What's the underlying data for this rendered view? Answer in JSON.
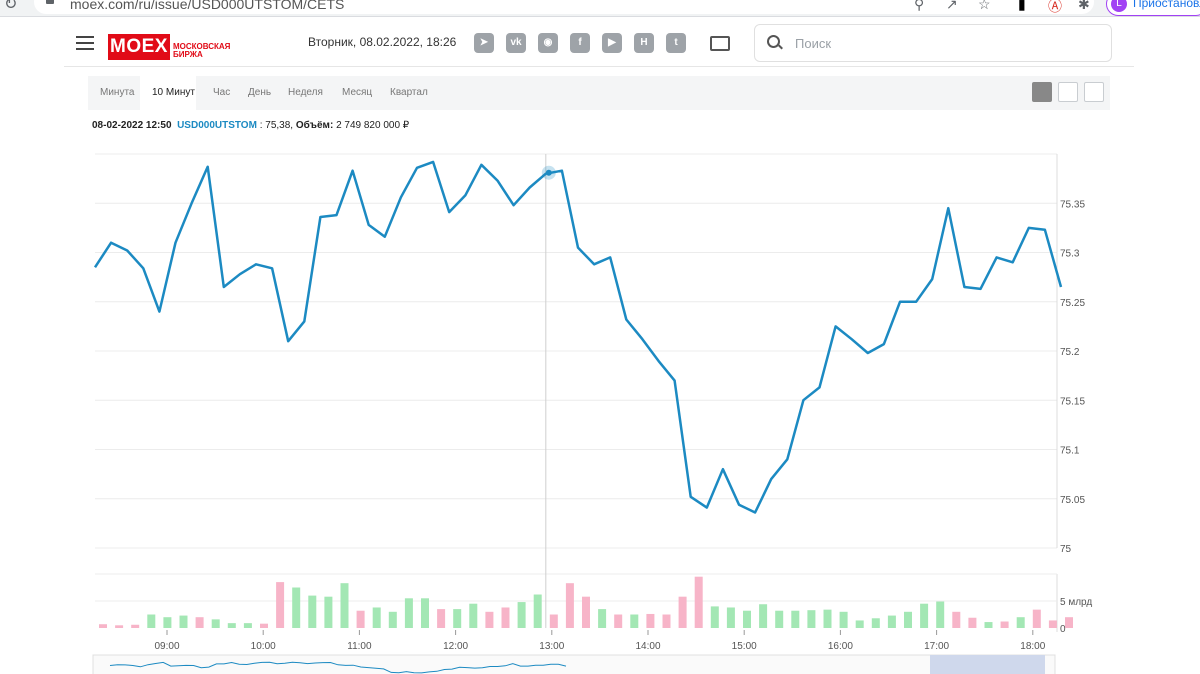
{
  "browser": {
    "url": "moex.com/ru/issue/USD000UTSTOM/CETS",
    "profile_initial": "L",
    "profile_label": "Приостановлено"
  },
  "header": {
    "logo_text": "MOEX",
    "logo_subtitle": "МОСКОВСКАЯ БИРЖА",
    "datetime": "Вторник, 08.02.2022, 18:26",
    "social_icons": [
      "telegram-icon",
      "vk-icon",
      "instagram-icon",
      "facebook-icon",
      "youtube-icon",
      "habr-icon",
      "twitter-icon"
    ],
    "search_placeholder": "Поиск"
  },
  "tabs": [
    "Минута",
    "10 Минут",
    "Час",
    "День",
    "Неделя",
    "Месяц",
    "Квартал"
  ],
  "active_tab": "10 Минут",
  "info": {
    "datetime": "08-02-2022 12:50",
    "symbol": "USD000UTSTOM",
    "price": "75,38",
    "volume_label": "Объём",
    "volume": "2 749 820 000 ₽"
  },
  "colors": {
    "line": "#1c8ac2",
    "up": "#a3e7b4",
    "down": "#f7b4c8",
    "brand": "#e10b17"
  },
  "chart_data": {
    "type": "line",
    "x_ticks": [
      "09:00",
      "10:00",
      "11:00",
      "12:00",
      "13:00",
      "14:00",
      "15:00",
      "16:00",
      "17:00",
      "18:00"
    ],
    "y_ticks": [
      "75",
      "75.05",
      "75.1",
      "75.15",
      "75.2",
      "75.25",
      "75.3",
      "75.35"
    ],
    "ylim": [
      75,
      75.4
    ],
    "volume_ticks": [
      "0",
      "5 млрд"
    ],
    "highlight_time": "12:50",
    "series": [
      {
        "values": [
          75.285,
          75.31,
          75.302,
          75.284,
          75.24,
          75.31,
          75.35,
          75.387,
          75.265,
          75.278,
          75.288,
          75.284,
          75.21,
          75.23,
          75.336,
          75.338,
          75.383,
          75.328,
          75.316,
          75.356,
          75.386,
          75.392,
          75.341,
          75.358,
          75.389,
          75.373,
          75.348,
          75.366,
          75.38,
          75.383,
          75.305,
          75.288,
          75.295,
          75.232,
          75.212,
          75.19,
          75.17,
          75.052,
          75.041,
          75.08,
          75.044,
          75.036,
          75.07,
          75.09,
          75.15,
          75.163,
          75.225,
          75.212,
          75.198,
          75.207,
          75.25,
          75.25,
          75.273,
          75.345,
          75.265,
          75.263,
          75.295,
          75.29,
          75.325,
          75.323,
          75.265
        ]
      },
      {
        "values": [
          0.7,
          0.5,
          0.6,
          2.5,
          2.0,
          2.3,
          2.0,
          1.6,
          0.9,
          0.9,
          0.8,
          8.5,
          7.5,
          6.0,
          5.8,
          8.3,
          3.2,
          3.8,
          3.0,
          5.5,
          5.5,
          3.5,
          3.5,
          4.5,
          3.0,
          3.8,
          4.8,
          6.2,
          2.5,
          8.3,
          5.8,
          3.5,
          2.5,
          2.5,
          2.6,
          2.5,
          5.8,
          9.5,
          4.0,
          3.8,
          3.2,
          4.4,
          3.2,
          3.2,
          3.3,
          3.4,
          3.0,
          1.4,
          1.8,
          2.3,
          3.0,
          4.5,
          4.9,
          3.0,
          1.9,
          1.1,
          1.2,
          2.0,
          3.4,
          1.4,
          2.0
        ],
        "directions": [
          "d",
          "d",
          "d",
          "u",
          "u",
          "u",
          "d",
          "u",
          "u",
          "u",
          "d",
          "d",
          "u",
          "u",
          "u",
          "u",
          "d",
          "u",
          "u",
          "u",
          "u",
          "d",
          "u",
          "u",
          "d",
          "d",
          "u",
          "u",
          "d",
          "d",
          "d",
          "u",
          "d",
          "u",
          "d",
          "d",
          "d",
          "d",
          "u",
          "u",
          "u",
          "u",
          "u",
          "u",
          "u",
          "u",
          "u",
          "u",
          "u",
          "u",
          "u",
          "u",
          "u",
          "d",
          "d",
          "u",
          "d",
          "u",
          "d",
          "d",
          "d"
        ]
      }
    ]
  }
}
